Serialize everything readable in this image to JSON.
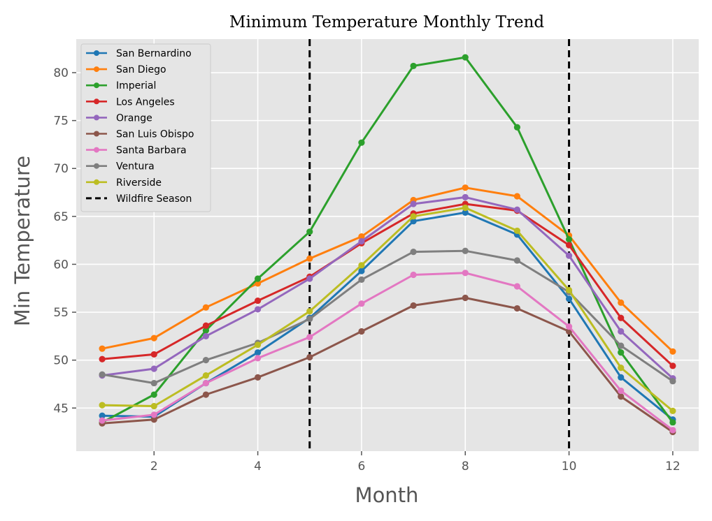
{
  "chart_data": {
    "type": "line",
    "title": "Minimum Temperature Monthly Trend",
    "xlabel": "Month",
    "ylabel": "Min Temperature",
    "x": [
      1,
      2,
      3,
      4,
      5,
      6,
      7,
      8,
      9,
      10,
      11,
      12
    ],
    "xlim": [
      0.5,
      12.5
    ],
    "ylim": [
      40.5,
      83.5
    ],
    "xticks": [
      2,
      4,
      6,
      8,
      10,
      12
    ],
    "yticks": [
      45,
      50,
      55,
      60,
      65,
      70,
      75,
      80
    ],
    "grid": true,
    "legend_position": "top-left",
    "series": [
      {
        "name": "San Bernardino",
        "color": "#1f77b4",
        "values": [
          44.2,
          44.1,
          47.6,
          50.8,
          54.4,
          59.3,
          64.5,
          65.4,
          63.1,
          56.4,
          48.2,
          43.8
        ]
      },
      {
        "name": "San Diego",
        "color": "#ff7f0e",
        "values": [
          51.2,
          52.3,
          55.5,
          58.0,
          60.6,
          62.9,
          66.7,
          68.0,
          67.1,
          63.0,
          56.0,
          50.9
        ]
      },
      {
        "name": "Imperial",
        "color": "#2ca02c",
        "values": [
          43.5,
          46.4,
          53.1,
          58.5,
          63.4,
          72.7,
          80.7,
          81.6,
          74.3,
          62.6,
          50.8,
          43.5
        ]
      },
      {
        "name": "Los Angeles",
        "color": "#d62728",
        "values": [
          50.1,
          50.6,
          53.6,
          56.2,
          58.7,
          62.2,
          65.3,
          66.3,
          65.6,
          62.0,
          54.4,
          49.4
        ]
      },
      {
        "name": "Orange",
        "color": "#9467bd",
        "values": [
          48.4,
          49.1,
          52.5,
          55.3,
          58.5,
          62.4,
          66.3,
          67.0,
          65.7,
          60.9,
          53.0,
          48.1
        ]
      },
      {
        "name": "San Luis Obispo",
        "color": "#8c564b",
        "values": [
          43.4,
          43.8,
          46.4,
          48.2,
          50.3,
          53.0,
          55.7,
          56.5,
          55.4,
          53.0,
          46.2,
          42.5
        ]
      },
      {
        "name": "Santa Barbara",
        "color": "#e377c2",
        "values": [
          43.7,
          44.3,
          47.6,
          50.2,
          52.4,
          55.9,
          58.9,
          59.1,
          57.7,
          53.5,
          46.8,
          42.7
        ]
      },
      {
        "name": "Ventura",
        "color": "#7f7f7f",
        "values": [
          48.5,
          47.6,
          50.0,
          51.8,
          54.3,
          58.4,
          61.3,
          61.4,
          60.4,
          57.1,
          51.5,
          47.8
        ]
      },
      {
        "name": "Riverside",
        "color": "#bcbd22",
        "values": [
          45.3,
          45.2,
          48.4,
          51.6,
          55.1,
          59.9,
          65.0,
          65.9,
          63.5,
          57.3,
          49.2,
          44.7
        ]
      }
    ],
    "annotations": [
      {
        "name": "Wildfire Season",
        "type": "vline",
        "x": [
          5,
          10
        ],
        "color": "#000000",
        "style": "dashed"
      }
    ]
  }
}
